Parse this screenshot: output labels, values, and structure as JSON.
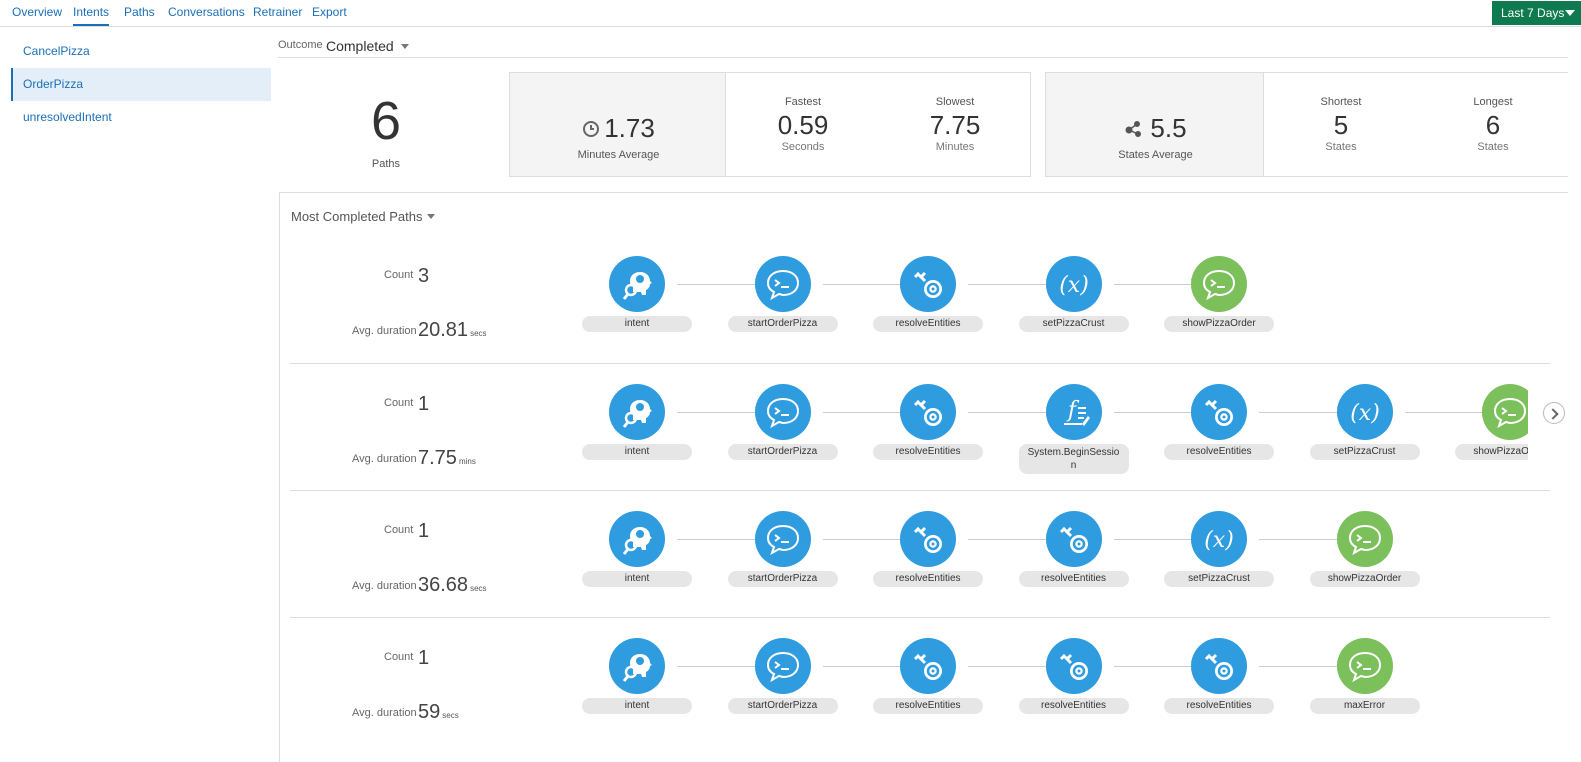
{
  "tabs": [
    {
      "label": "Overview"
    },
    {
      "label": "Intents"
    },
    {
      "label": "Paths"
    },
    {
      "label": "Conversations"
    },
    {
      "label": "Retrainer"
    },
    {
      "label": "Export"
    }
  ],
  "date_range": {
    "label": "Last 7 Days"
  },
  "sidebar": {
    "items": [
      {
        "label": "CancelPizza"
      },
      {
        "label": "OrderPizza"
      },
      {
        "label": "unresolvedIntent"
      }
    ]
  },
  "outcome": {
    "label": "Outcome",
    "value": "Completed"
  },
  "summary": {
    "paths": {
      "value": "6",
      "label": "Paths"
    },
    "minutes_average": {
      "value": "1.73",
      "label": "Minutes Average"
    },
    "fastest": {
      "title": "Fastest",
      "value": "0.59",
      "unit": "Seconds"
    },
    "slowest": {
      "title": "Slowest",
      "value": "7.75",
      "unit": "Minutes"
    },
    "states_average": {
      "value": "5.5",
      "label": "States Average"
    },
    "shortest": {
      "title": "Shortest",
      "value": "5",
      "unit": "States"
    },
    "longest": {
      "title": "Longest",
      "value": "6",
      "unit": "States"
    }
  },
  "panel": {
    "title": "Most Completed Paths"
  },
  "rows": [
    {
      "count_label": "Count",
      "count": "3",
      "duration_label": "Avg. duration",
      "duration": "20.81",
      "duration_unit": "secs",
      "nodes": [
        {
          "label": "intent",
          "icon": "intent-icon"
        },
        {
          "label": "startOrderPizza",
          "icon": "chat-icon"
        },
        {
          "label": "resolveEntities",
          "icon": "resolve-icon"
        },
        {
          "label": "setPizzaCrust",
          "icon": "variable-icon"
        },
        {
          "label": "showPizzaOrder",
          "icon": "chat-green-icon"
        }
      ]
    },
    {
      "count_label": "Count",
      "count": "1",
      "duration_label": "Avg. duration",
      "duration": "7.75",
      "duration_unit": "mins",
      "nodes": [
        {
          "label": "intent",
          "icon": "intent-icon"
        },
        {
          "label": "startOrderPizza",
          "icon": "chat-icon"
        },
        {
          "label": "resolveEntities",
          "icon": "resolve-icon"
        },
        {
          "label": "System.BeginSession",
          "icon": "function-icon"
        },
        {
          "label": "resolveEntities",
          "icon": "resolve-icon"
        },
        {
          "label": "setPizzaCrust",
          "icon": "variable-icon"
        },
        {
          "label": "showPizzaOrder",
          "icon": "chat-green-icon"
        }
      ]
    },
    {
      "count_label": "Count",
      "count": "1",
      "duration_label": "Avg. duration",
      "duration": "36.68",
      "duration_unit": "secs",
      "nodes": [
        {
          "label": "intent",
          "icon": "intent-icon"
        },
        {
          "label": "startOrderPizza",
          "icon": "chat-icon"
        },
        {
          "label": "resolveEntities",
          "icon": "resolve-icon"
        },
        {
          "label": "resolveEntities",
          "icon": "resolve-icon"
        },
        {
          "label": "setPizzaCrust",
          "icon": "variable-icon"
        },
        {
          "label": "showPizzaOrder",
          "icon": "chat-green-icon"
        }
      ]
    },
    {
      "count_label": "Count",
      "count": "1",
      "duration_label": "Avg. duration",
      "duration": "59",
      "duration_unit": "secs",
      "nodes": [
        {
          "label": "intent",
          "icon": "intent-icon"
        },
        {
          "label": "startOrderPizza",
          "icon": "chat-icon"
        },
        {
          "label": "resolveEntities",
          "icon": "resolve-icon"
        },
        {
          "label": "resolveEntities",
          "icon": "resolve-icon"
        },
        {
          "label": "resolveEntities",
          "icon": "resolve-icon"
        },
        {
          "label": "maxError",
          "icon": "chat-green-icon"
        }
      ]
    }
  ]
}
